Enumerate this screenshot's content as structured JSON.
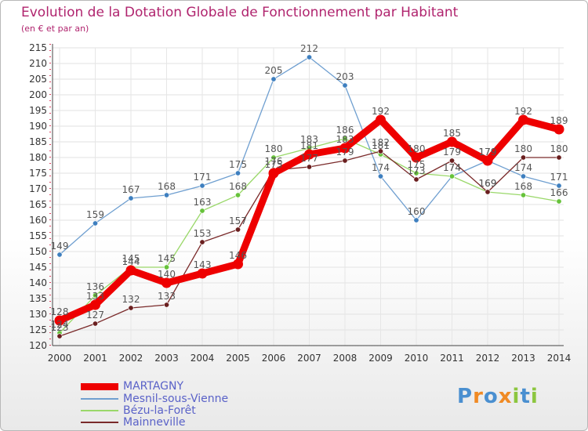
{
  "title": "Evolution de la Dotation Globale de Fonctionnement par Habitant",
  "subtitle": "(en € et par an)",
  "logo": {
    "text": "Proxiti",
    "letters": [
      {
        "ch": "P",
        "color": "#4a8fd0"
      },
      {
        "ch": "r",
        "color": "#f08a24"
      },
      {
        "ch": "o",
        "color": "#4a8fd0"
      },
      {
        "ch": "x",
        "color": "#f08a24"
      },
      {
        "ch": "i",
        "color": "#8cc63f"
      },
      {
        "ch": "t",
        "color": "#4a8fd0"
      },
      {
        "ch": "i",
        "color": "#8cc63f"
      }
    ]
  },
  "chart_data": {
    "type": "line",
    "title": "Evolution de la Dotation Globale de Fonctionnement par Habitant",
    "subtitle": "(en € et par an)",
    "xlabel": "",
    "ylabel": "",
    "ylim": [
      120,
      215
    ],
    "yticks": [
      120,
      125,
      130,
      135,
      140,
      145,
      150,
      155,
      160,
      165,
      170,
      175,
      180,
      185,
      190,
      195,
      200,
      205,
      210,
      215
    ],
    "grid": true,
    "legend_position": "bottom-left",
    "categories": [
      "2000",
      "2001",
      "2002",
      "2003",
      "2004",
      "2005",
      "2006",
      "2007",
      "2008",
      "2009",
      "2010",
      "2011",
      "2012",
      "2013",
      "2014"
    ],
    "series": [
      {
        "name": "MARTAGNY",
        "color": "#ee0000",
        "marker": "#ee0000",
        "width": 9,
        "values": [
          128,
          133,
          144,
          140,
          143,
          146,
          175,
          181,
          183,
          192,
          180,
          185,
          179,
          192,
          189
        ]
      },
      {
        "name": "Mesnil-sous-Vienne",
        "color": "#6f9fd0",
        "marker": "#3e7fbf",
        "width": 1.3,
        "values": [
          149,
          159,
          167,
          168,
          171,
          175,
          205,
          212,
          203,
          174,
          160,
          174,
          179,
          174,
          171
        ]
      },
      {
        "name": "Bézu-la-Forêt",
        "color": "#9ad86a",
        "marker": "#66c23a",
        "width": 1.3,
        "values": [
          124,
          136,
          145,
          145,
          163,
          168,
          180,
          183,
          186,
          181,
          175,
          174,
          169,
          168,
          166
        ]
      },
      {
        "name": "Mainneville",
        "color": "#7a2a2a",
        "marker": "#6a1f1f",
        "width": 1.3,
        "values": [
          123,
          127,
          132,
          133,
          153,
          157,
          176,
          177,
          179,
          182,
          173,
          179,
          169,
          180,
          180
        ]
      }
    ]
  }
}
